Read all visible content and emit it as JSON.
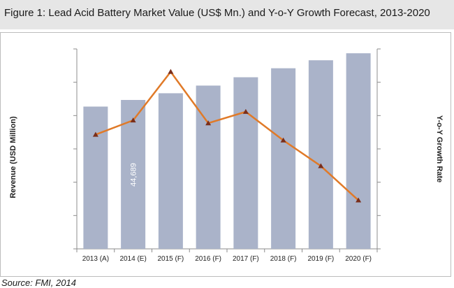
{
  "figure": {
    "title": "Figure 1: Lead Acid Battery Market Value (US$ Mn.) and Y-o-Y Growth Forecast, 2013-2020",
    "source": "Source: FMI, 2014"
  },
  "chart_data": {
    "type": "bar",
    "categories": [
      "2013 (A)",
      "2014 (E)",
      "2015 (F)",
      "2016 (F)",
      "2017 (F)",
      "2018 (F)",
      "2019 (F)",
      "2020 (F)"
    ],
    "series": [
      {
        "name": "",
        "type": "bar",
        "axis": "left",
        "values": [
          42700,
          44689,
          46700,
          49000,
          51500,
          54200,
          56600,
          58700
        ],
        "color": "#aab3c9"
      },
      {
        "name": "",
        "type": "line",
        "axis": "right",
        "values": [
          4.0,
          4.5,
          6.2,
          4.4,
          4.8,
          3.8,
          2.9,
          1.7
        ],
        "color": "#e07a28",
        "marker_color": "#7a2e1a"
      }
    ],
    "data_labels": [
      {
        "category": "2014 (E)",
        "text": "44,689"
      }
    ],
    "ylabel": "Revenue (USD Million)",
    "y2label": "Y-o-Y Growth Rate",
    "ylim": [
      0,
      60000
    ],
    "y2lim": [
      0,
      7
    ],
    "grid": false,
    "legend": "none",
    "tick_labels_y": "hidden",
    "tick_labels_y2": "hidden"
  }
}
